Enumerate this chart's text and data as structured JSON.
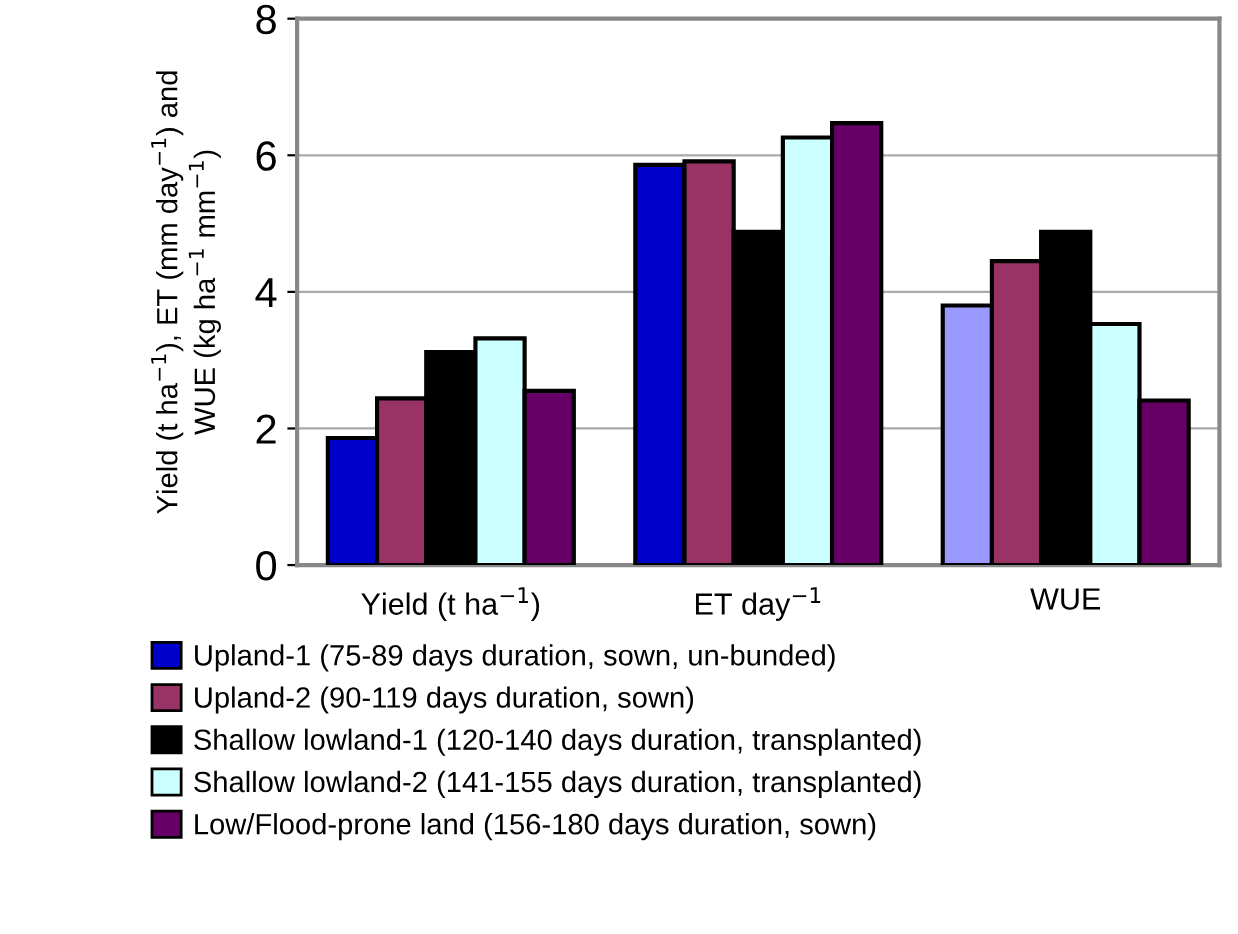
{
  "chart_data": {
    "type": "bar",
    "ylabel": "Yield (t ha$^{−1}$), ET (mm day$^{−1}$) and\nWUE (kg ha$^{−1}$ mm$^{−1}$)",
    "categories": [
      "Yield (t ha$^{−1}$)",
      "ET day$^{−1}$",
      "WUE"
    ],
    "series": [
      {
        "name": "Upland-1 (75-89 days duration, sown, un-bunded)",
        "color": "#0000cc",
        "colors": [
          "#0000cc",
          "#0000cc",
          "#9999ff"
        ],
        "values": [
          1.86,
          5.86,
          3.8
        ]
      },
      {
        "name": "Upland-2 (90-119 days duration, sown)",
        "color": "#993366",
        "values": [
          2.44,
          5.91,
          4.45
        ]
      },
      {
        "name": "Shallow lowland-1 (120-140 days duration, transplanted)",
        "color": "#000000",
        "values": [
          3.12,
          4.88,
          4.88
        ]
      },
      {
        "name": "Shallow lowland-2 (141-155 days duration, transplanted)",
        "color": "#ccffff",
        "values": [
          3.32,
          6.26,
          3.53
        ]
      },
      {
        "name": "Low/Flood-prone land (156-180 days duration, sown)",
        "color": "#660066",
        "values": [
          2.55,
          6.47,
          2.41
        ]
      }
    ],
    "ylim": [
      0,
      8
    ],
    "yticks": [
      0,
      2,
      4,
      6,
      8
    ],
    "grid": "y",
    "legend": "bottom"
  }
}
